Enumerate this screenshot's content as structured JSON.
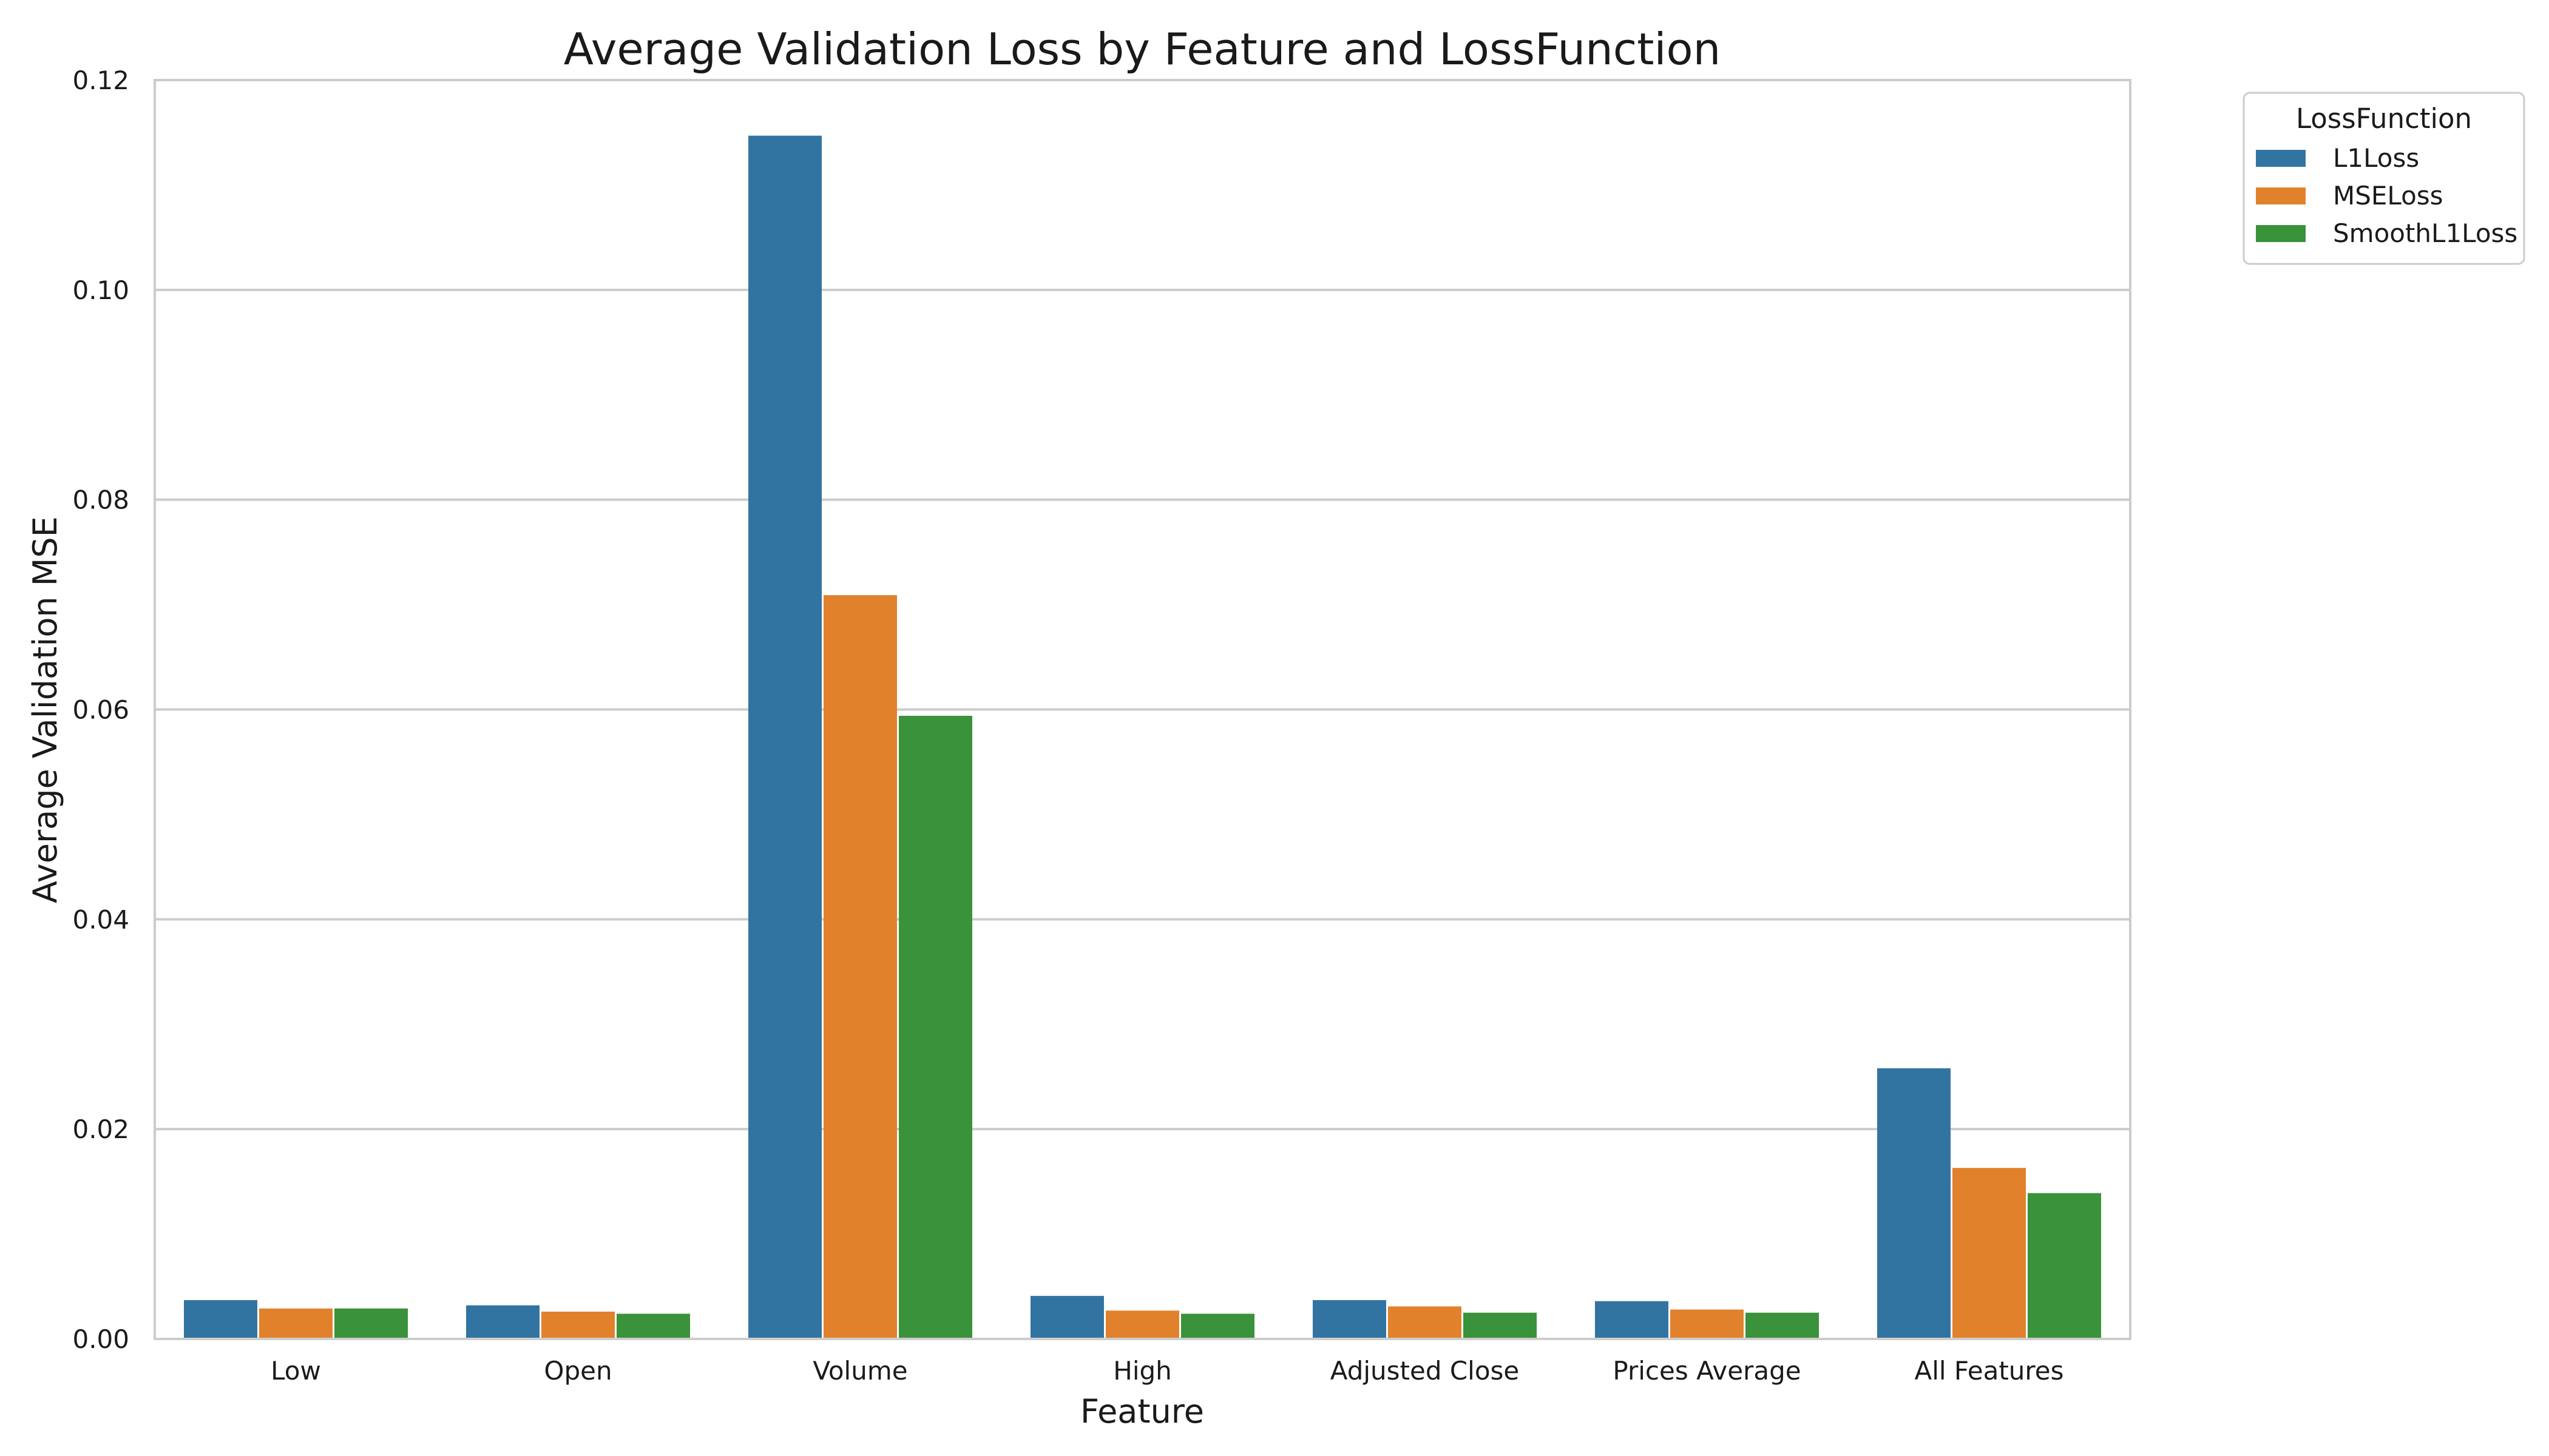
{
  "chart_data": {
    "type": "bar",
    "title": "Average Validation Loss by Feature and LossFunction",
    "xlabel": "Feature",
    "ylabel": "Average Validation MSE",
    "ylim": [
      0,
      0.12
    ],
    "yticks": [
      0.0,
      0.02,
      0.04,
      0.06,
      0.08,
      0.1,
      0.12
    ],
    "ytick_labels": [
      "0.00",
      "0.02",
      "0.04",
      "0.06",
      "0.08",
      "0.10",
      "0.12"
    ],
    "grid": true,
    "categories": [
      "Low",
      "Open",
      "Volume",
      "High",
      "Adjusted Close",
      "Prices Average",
      "All Features"
    ],
    "series": [
      {
        "name": "L1Loss",
        "color": "#3274a1",
        "values": [
          0.0037,
          0.0032,
          0.1147,
          0.0041,
          0.0037,
          0.0036,
          0.0258
        ]
      },
      {
        "name": "MSELoss",
        "color": "#e1812c",
        "values": [
          0.0029,
          0.0026,
          0.0709,
          0.0027,
          0.0031,
          0.0028,
          0.0163
        ]
      },
      {
        "name": "SmoothL1Loss",
        "color": "#3a923a",
        "values": [
          0.0029,
          0.0024,
          0.0594,
          0.0024,
          0.0025,
          0.0025,
          0.0139
        ]
      }
    ],
    "legend": {
      "title": "LossFunction",
      "placement": "outside-top-right"
    }
  }
}
